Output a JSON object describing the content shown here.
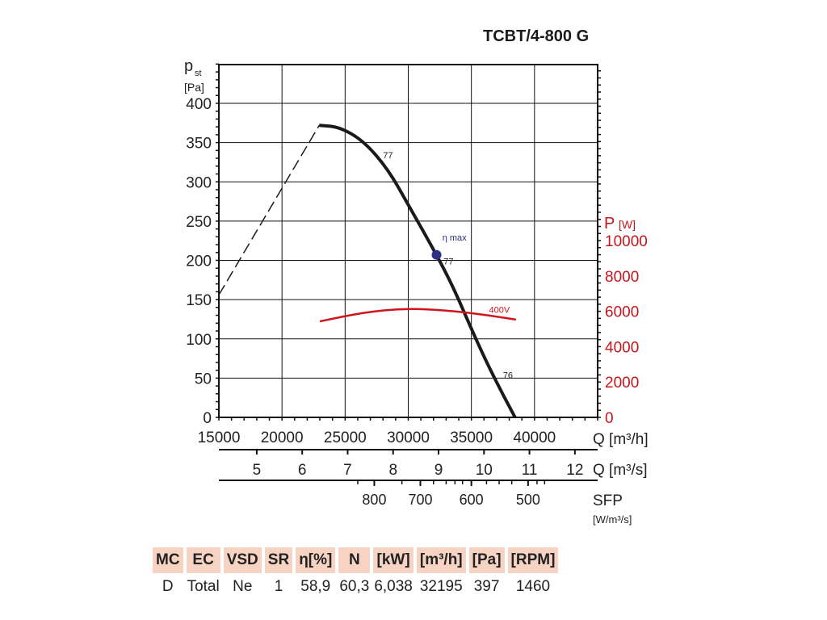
{
  "title": "TCBT/4-800 G",
  "chart_data": {
    "type": "line",
    "title": "TCBT/4-800 G",
    "ylabel": "p",
    "ylabel_sub": "st",
    "ylabel_unit": "[Pa]",
    "y2label": "P",
    "y2label_unit": "[W]",
    "xlabel": "Q [m³/h]",
    "x2label": "Q [m³/s]",
    "x3label": "SFP",
    "x3label_unit": "[W/m³/s]",
    "xlim": [
      15000,
      45000
    ],
    "ylim": [
      0,
      450
    ],
    "y2lim": [
      0,
      20550
    ],
    "grid": true,
    "x_ticks": [
      15000,
      20000,
      25000,
      30000,
      35000,
      40000
    ],
    "y_ticks": [
      0,
      50,
      100,
      150,
      200,
      250,
      300,
      350,
      400
    ],
    "y2_ticks": [
      0,
      2000,
      4000,
      6000,
      8000,
      10000
    ],
    "x2_ticks": [
      5,
      6,
      7,
      8,
      9,
      10,
      11,
      12
    ],
    "x3_ticks": [
      {
        "label": "800",
        "q_m3h": 27310
      },
      {
        "label": "700",
        "q_m3h": 30960
      },
      {
        "label": "600",
        "q_m3h": 35000
      },
      {
        "label": "500",
        "q_m3h": 39490
      }
    ],
    "series": [
      {
        "name": "pressure",
        "axis": "left",
        "color": "#1a1a1a",
        "x": [
          22950,
          24550,
          26470,
          28400,
          30000,
          32240,
          33530,
          34800,
          36090,
          37370,
          38460
        ],
        "y": [
          372,
          370,
          352,
          316,
          271,
          207,
          167,
          120,
          74,
          33,
          0
        ]
      },
      {
        "name": "stall-limit",
        "axis": "left",
        "color": "#1a1a1a",
        "dashed": true,
        "x": [
          15000,
          22950
        ],
        "y": [
          156,
          372
        ]
      },
      {
        "name": "400V",
        "axis": "right",
        "color": "#d0141b",
        "x": [
          23000,
          26470,
          29680,
          32880,
          36090,
          38530
        ],
        "y": [
          5430,
          5940,
          6160,
          6070,
          5800,
          5530
        ]
      }
    ],
    "annotations": [
      {
        "text": "77",
        "x": 28000,
        "y": 330
      },
      {
        "text": "η max",
        "x": 32700,
        "y": 225,
        "color": "#2b2f86"
      },
      {
        "text": "77",
        "x": 32800,
        "y": 195
      },
      {
        "text": "76",
        "x": 37500,
        "y": 50
      },
      {
        "text": "400V",
        "x": 36400,
        "y": 133,
        "color": "#d0141b"
      }
    ],
    "eta_max_point": {
      "x": 32240,
      "y": 207,
      "color": "#2b2f86"
    }
  },
  "table": {
    "headers": [
      "MC",
      "EC",
      "VSD",
      "SR",
      "η[%]",
      "N",
      "[kW]",
      "[m³/h]",
      "[Pa]",
      "[RPM]"
    ],
    "values": [
      "D",
      "Total",
      "Ne",
      "1",
      "58,9",
      "60,3",
      "6,038",
      "32195",
      "397",
      "1460"
    ]
  }
}
